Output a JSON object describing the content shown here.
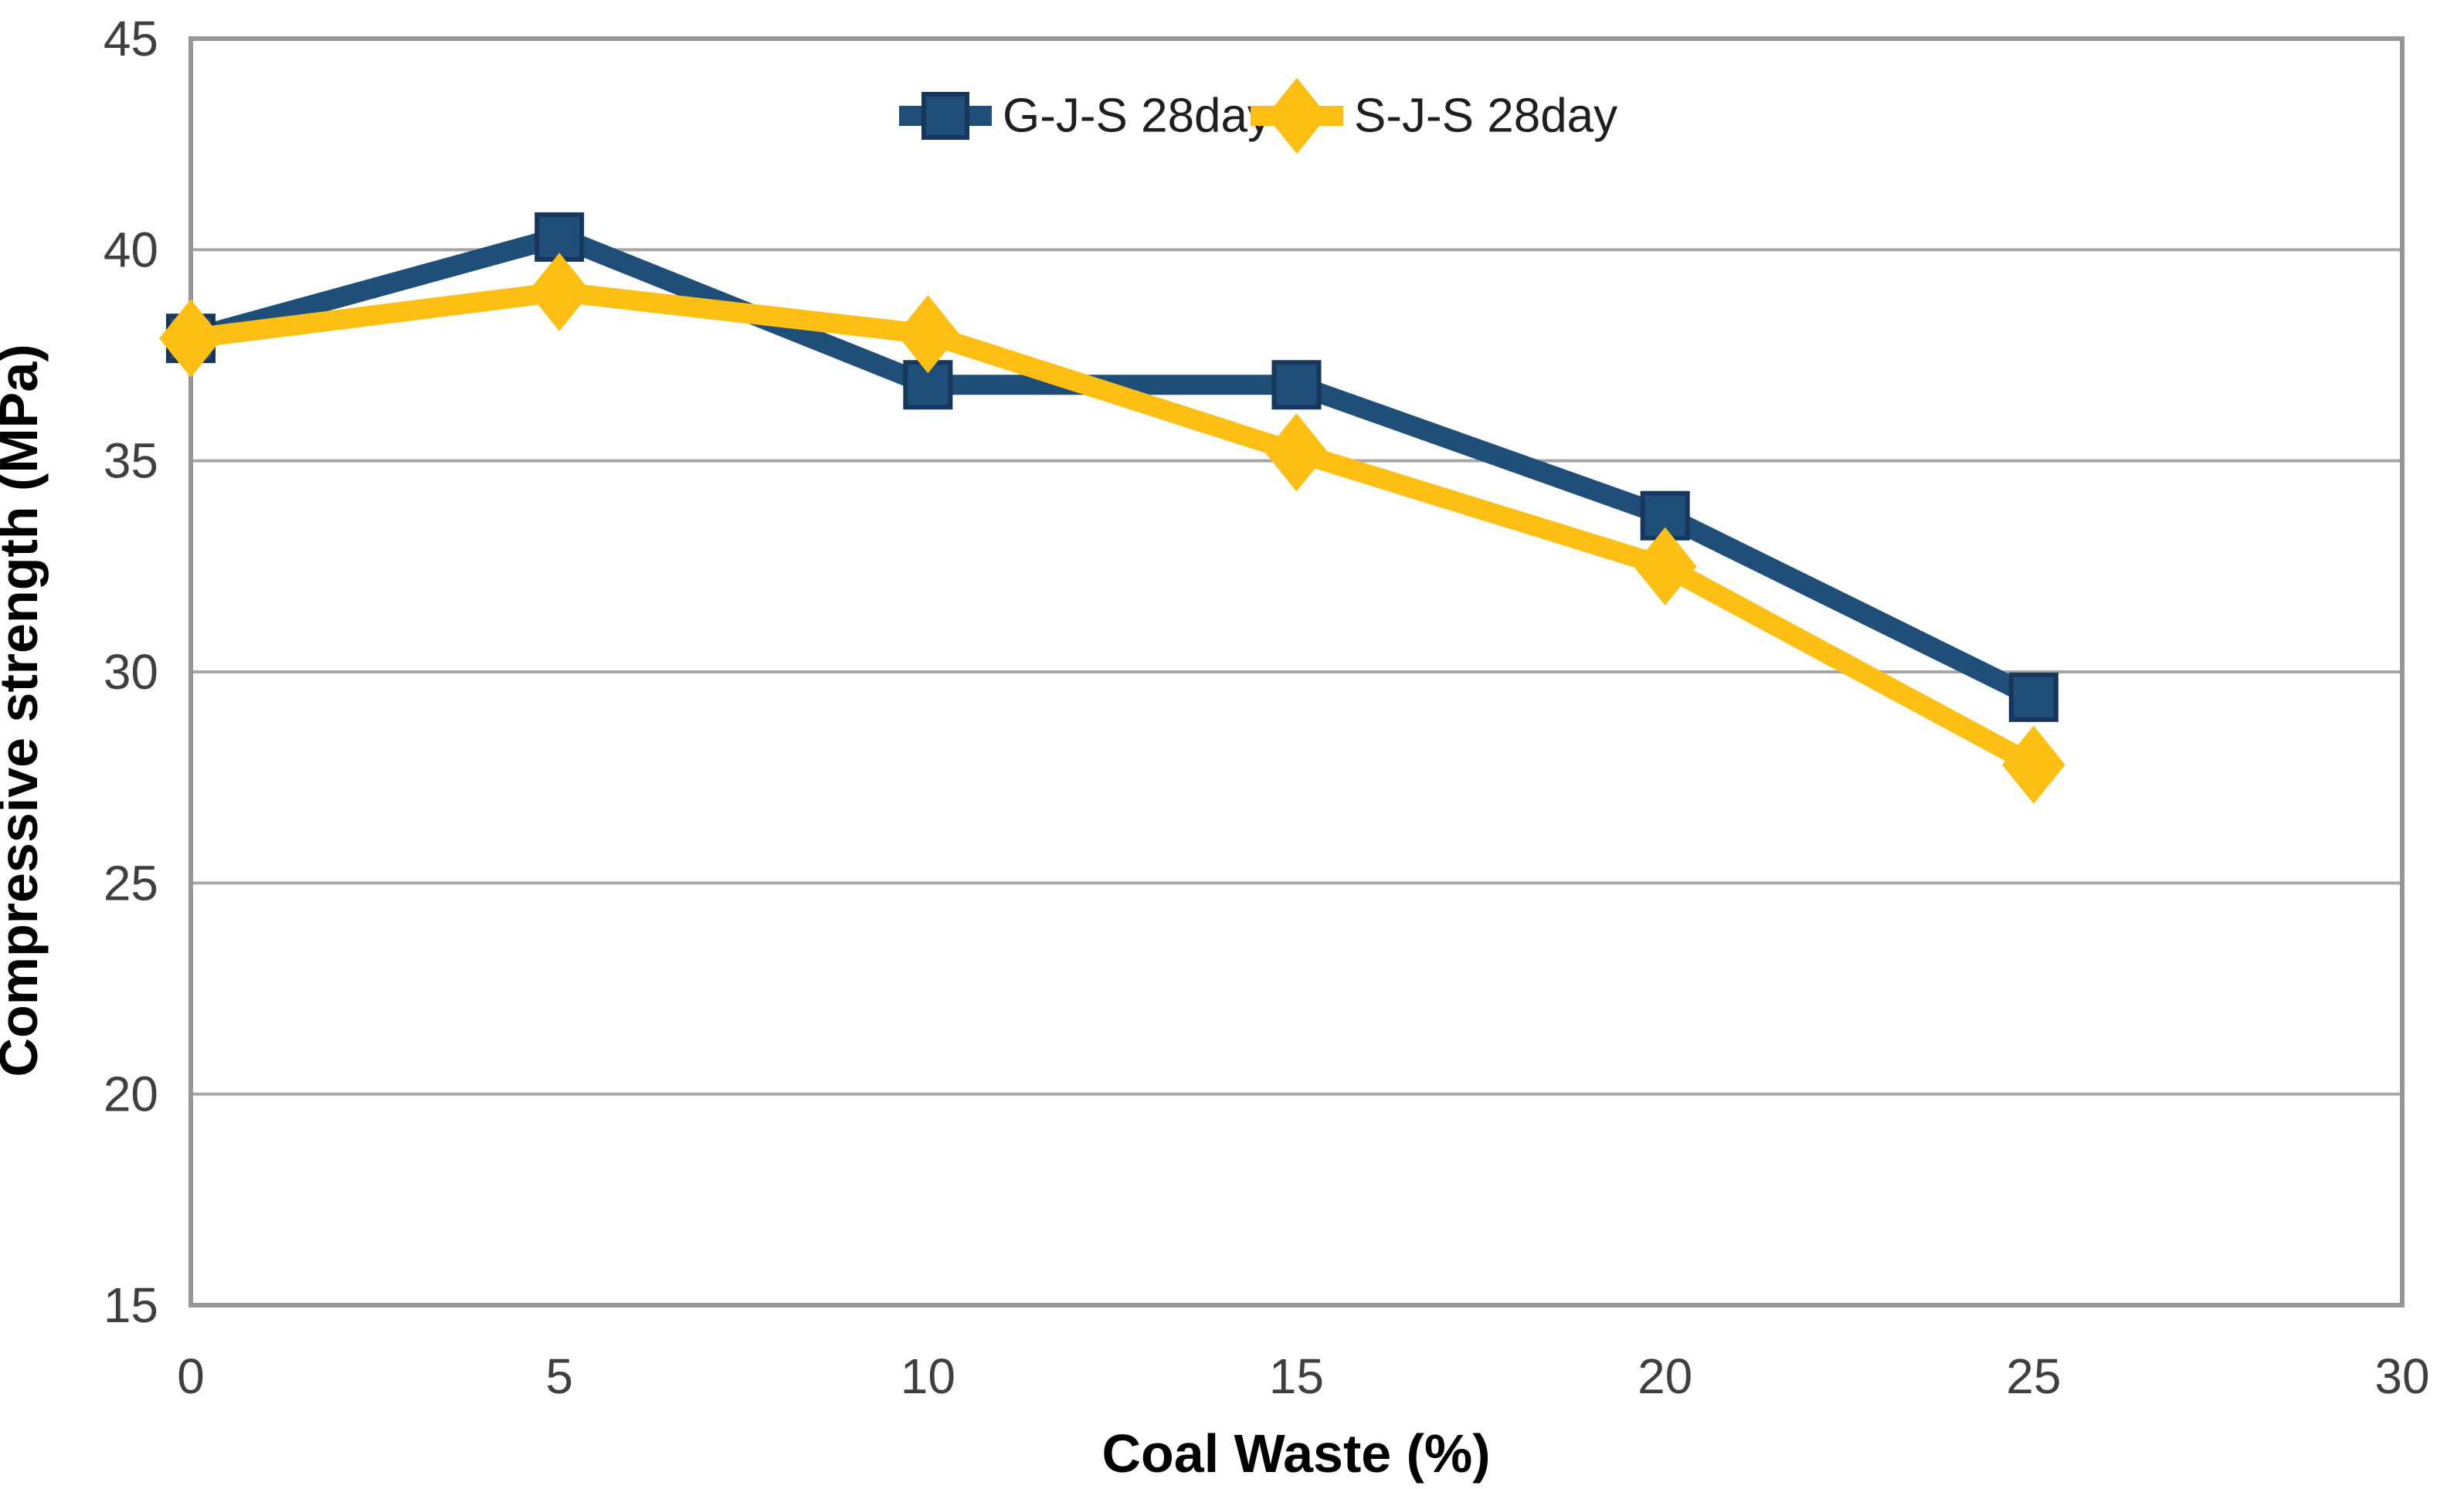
{
  "chart_data": {
    "type": "line",
    "xlabel": "Coal Waste (%)",
    "ylabel": "Compressive strength (MPa)",
    "x": [
      0,
      5,
      10,
      15,
      20,
      25
    ],
    "series": [
      {
        "name": "G-J-S 28day",
        "marker": "square",
        "color": "#1F4E79",
        "marker_stroke": "#16365C",
        "values": [
          37.9,
          40.3,
          36.8,
          36.8,
          33.7,
          29.4
        ]
      },
      {
        "name": "S-J-S 28day",
        "marker": "diamond",
        "color": "#FDBF13",
        "marker_stroke": "#FDBF13",
        "values": [
          37.9,
          39.0,
          38.0,
          35.2,
          32.5,
          27.8
        ]
      }
    ],
    "xlim": [
      0,
      30
    ],
    "ylim": [
      15,
      45
    ],
    "x_ticks": [
      0,
      5,
      10,
      15,
      20,
      25,
      30
    ],
    "y_ticks": [
      15,
      20,
      25,
      30,
      35,
      40,
      45
    ],
    "grid": "horizontal-only",
    "legend_position": "top-center",
    "colors": {
      "gridline": "#A6A6A6",
      "frame": "#969696",
      "tick_label": "#3F3F3F",
      "axis_title": "#000000",
      "legend_text": "#1F1F1F",
      "background": "#FFFFFF"
    }
  }
}
